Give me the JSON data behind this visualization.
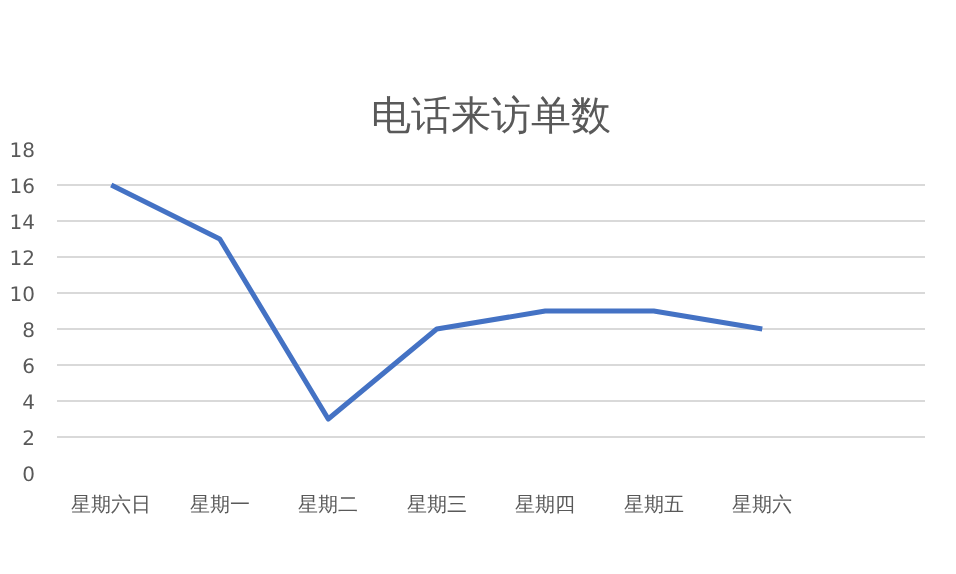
{
  "chart_data": {
    "type": "line",
    "title": "电话来访单数",
    "categories": [
      "星期六日",
      "星期一",
      "星期二",
      "星期三",
      "星期四",
      "星期五",
      "星期六",
      null
    ],
    "series": [
      {
        "color": "#4472c4",
        "values": [
          16,
          13,
          3,
          8,
          9,
          9,
          8,
          null
        ]
      }
    ],
    "ylim": [
      0,
      18
    ],
    "yticks": [
      0,
      2,
      4,
      6,
      8,
      10,
      12,
      14,
      16,
      18
    ],
    "grid": "y",
    "marker": "none",
    "line_style": "solid"
  }
}
